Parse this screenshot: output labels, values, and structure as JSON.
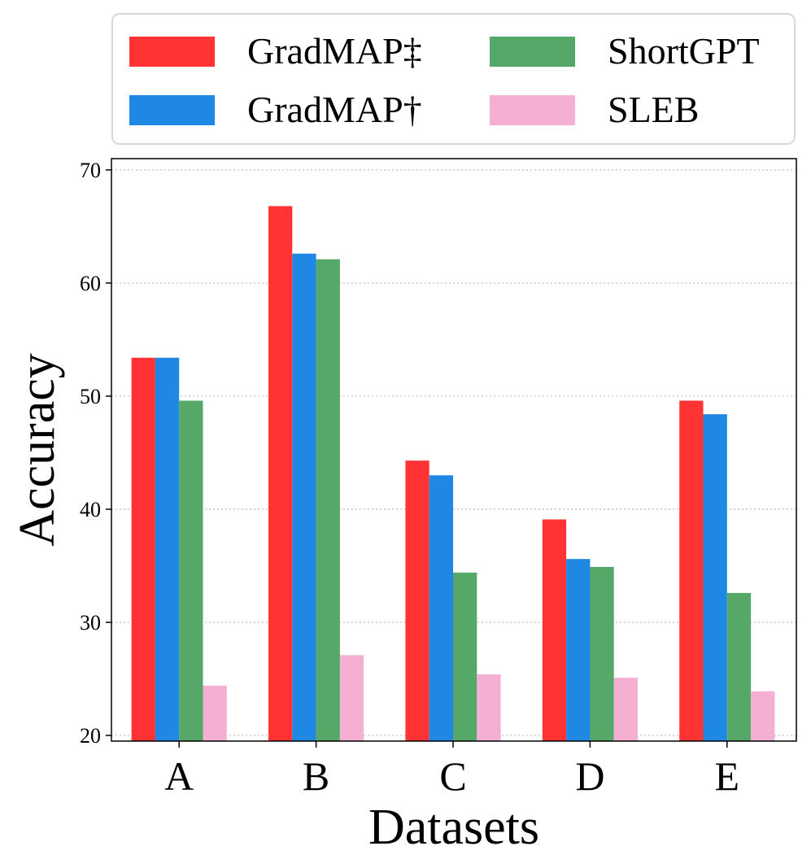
{
  "chart_data": {
    "type": "bar",
    "categories": [
      "A",
      "B",
      "C",
      "D",
      "E"
    ],
    "series": [
      {
        "name": "GradMAP‡",
        "color": "#ff3333",
        "values": [
          53.4,
          66.8,
          44.3,
          39.1,
          49.6
        ]
      },
      {
        "name": "GradMAP†",
        "color": "#1f88e5",
        "values": [
          53.4,
          62.6,
          43.0,
          35.6,
          48.4
        ]
      },
      {
        "name": "ShortGPT",
        "color": "#55a868",
        "values": [
          49.6,
          62.1,
          34.4,
          34.9,
          32.6
        ]
      },
      {
        "name": "SLEB",
        "color": "#f4afd3",
        "values": [
          24.4,
          27.1,
          25.4,
          25.1,
          23.9
        ]
      }
    ],
    "xlabel": "Datasets",
    "ylabel": "Accuracy",
    "ylim": [
      19.5,
      71
    ],
    "yticks": [
      20,
      30,
      40,
      50,
      60,
      70
    ],
    "grid": "y-dotted",
    "legend_position": "top, outside, 2 columns"
  }
}
